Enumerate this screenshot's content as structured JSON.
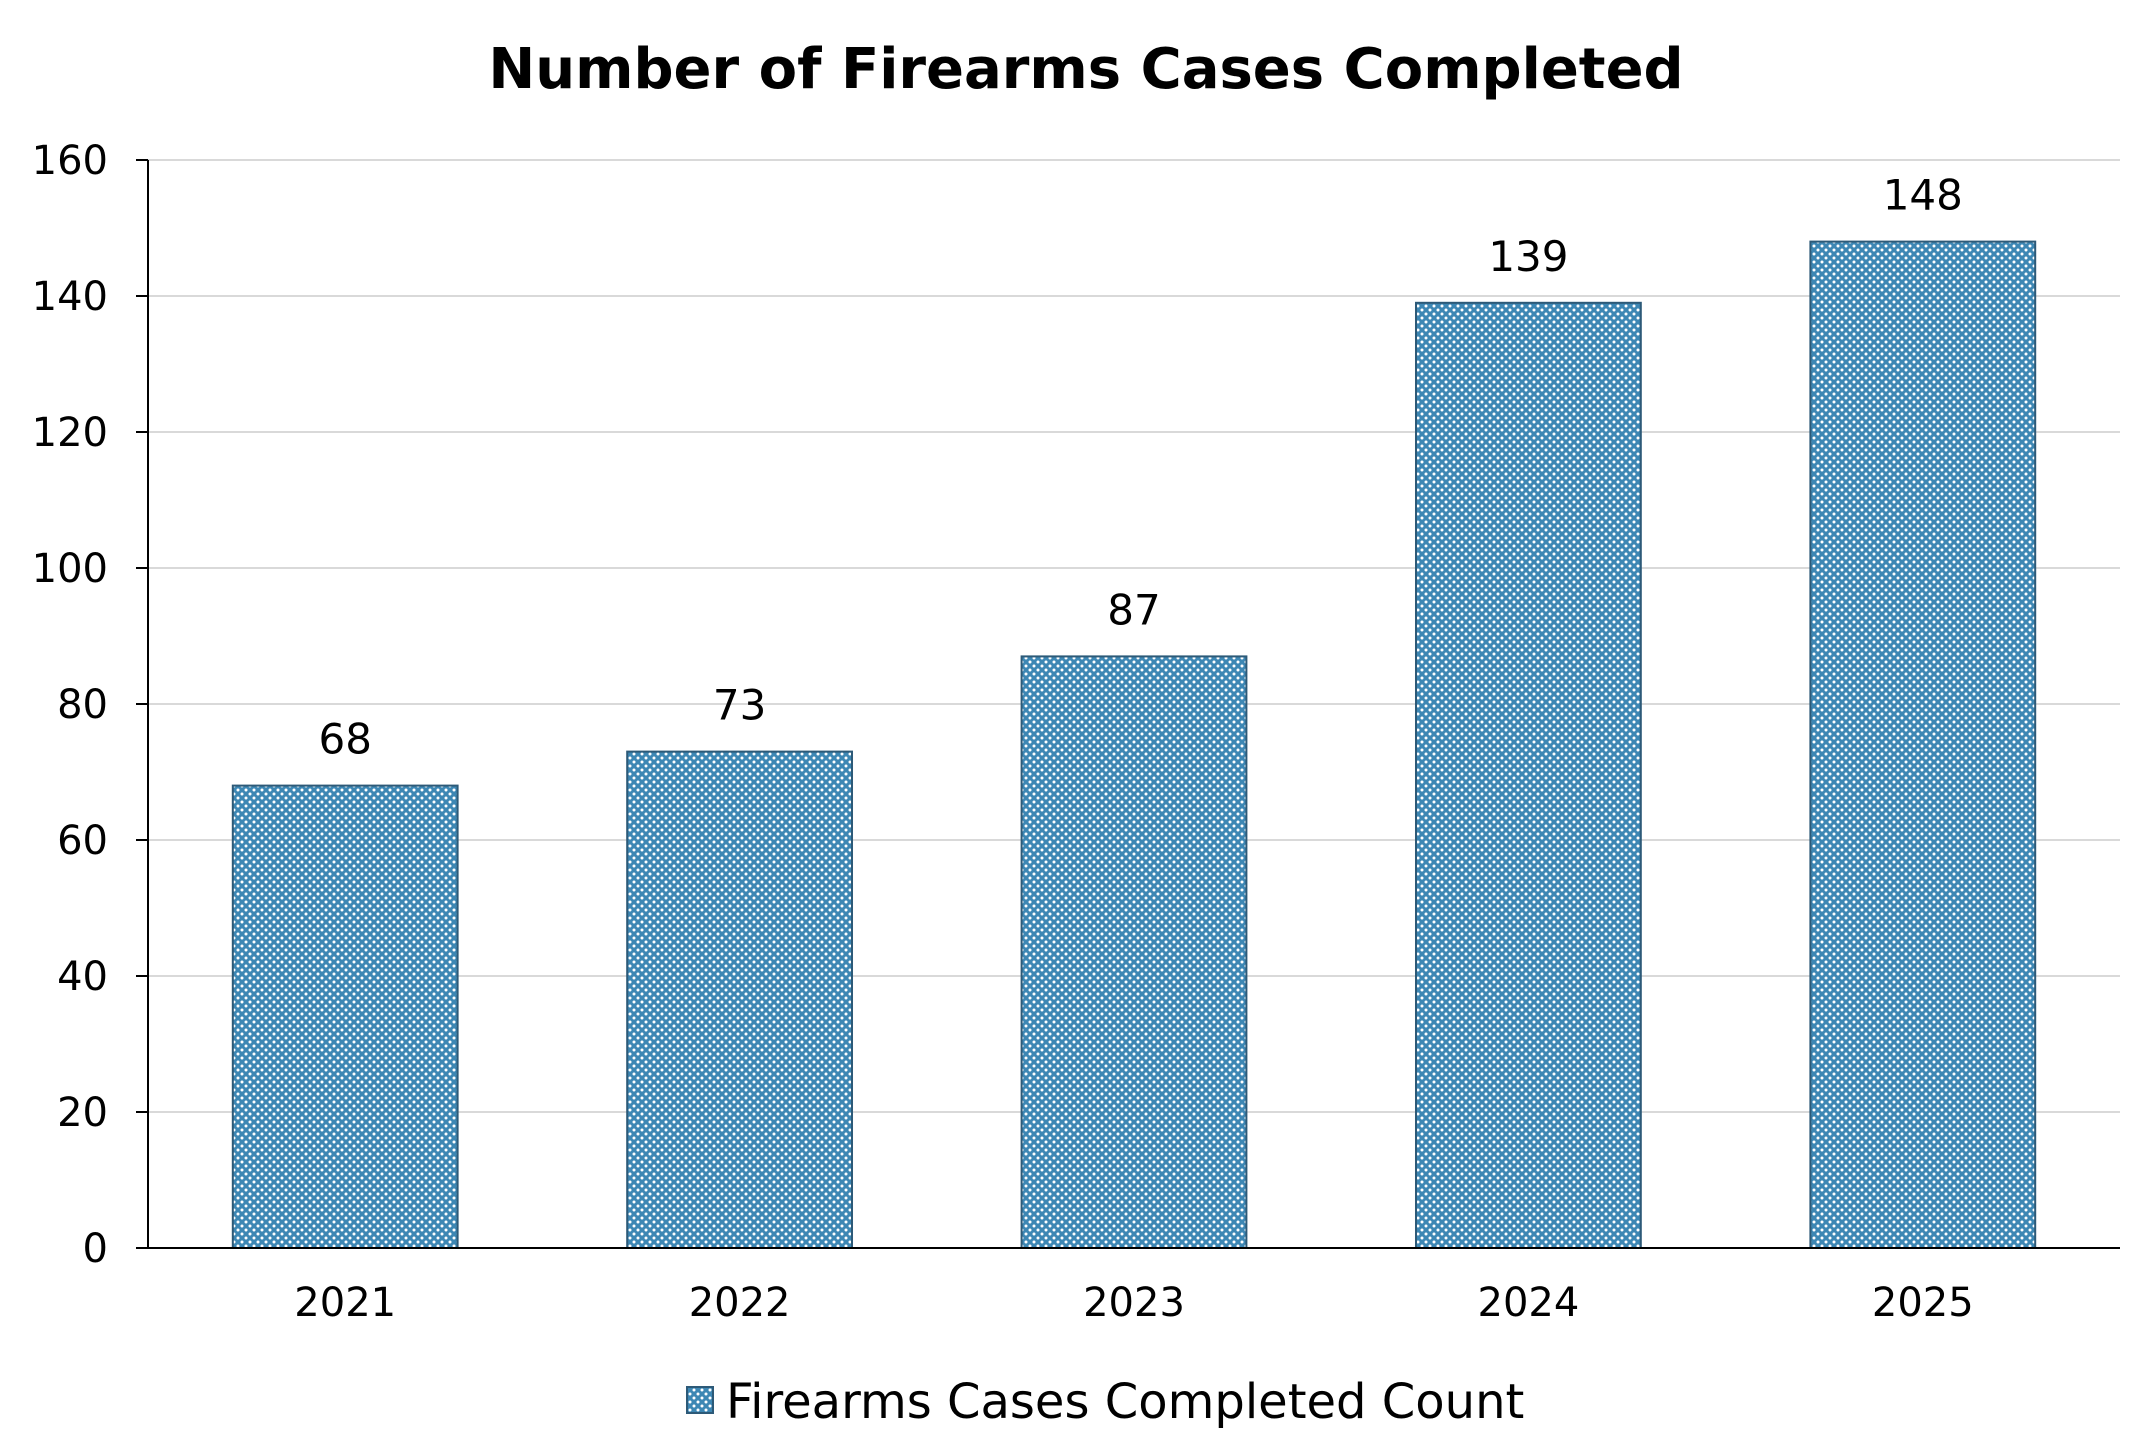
{
  "chart_data": {
    "type": "bar",
    "title": "Number of Firearms Cases Completed",
    "xlabel": "",
    "ylabel": "",
    "categories": [
      "2021",
      "2022",
      "2023",
      "2024",
      "2025"
    ],
    "series": [
      {
        "name": "Firearms Cases Completed Count",
        "values": [
          68,
          73,
          87,
          139,
          148
        ],
        "data_labels": [
          "68",
          "73",
          "87",
          "139",
          "148"
        ]
      }
    ],
    "ylim": [
      0,
      160
    ],
    "yticks": [
      0,
      20,
      40,
      60,
      80,
      100,
      120,
      140,
      160
    ],
    "ytick_labels": [
      "0",
      "20",
      "40",
      "60",
      "80",
      "100",
      "120",
      "140",
      "160"
    ],
    "grid": true,
    "legend_position": "bottom-center",
    "colors": {
      "bar_fill": "#3d87b4",
      "bar_dots": "#ffffff",
      "bar_edge": "#2d5a78",
      "grid": "#d9d9d9",
      "axis": "#000000"
    }
  }
}
